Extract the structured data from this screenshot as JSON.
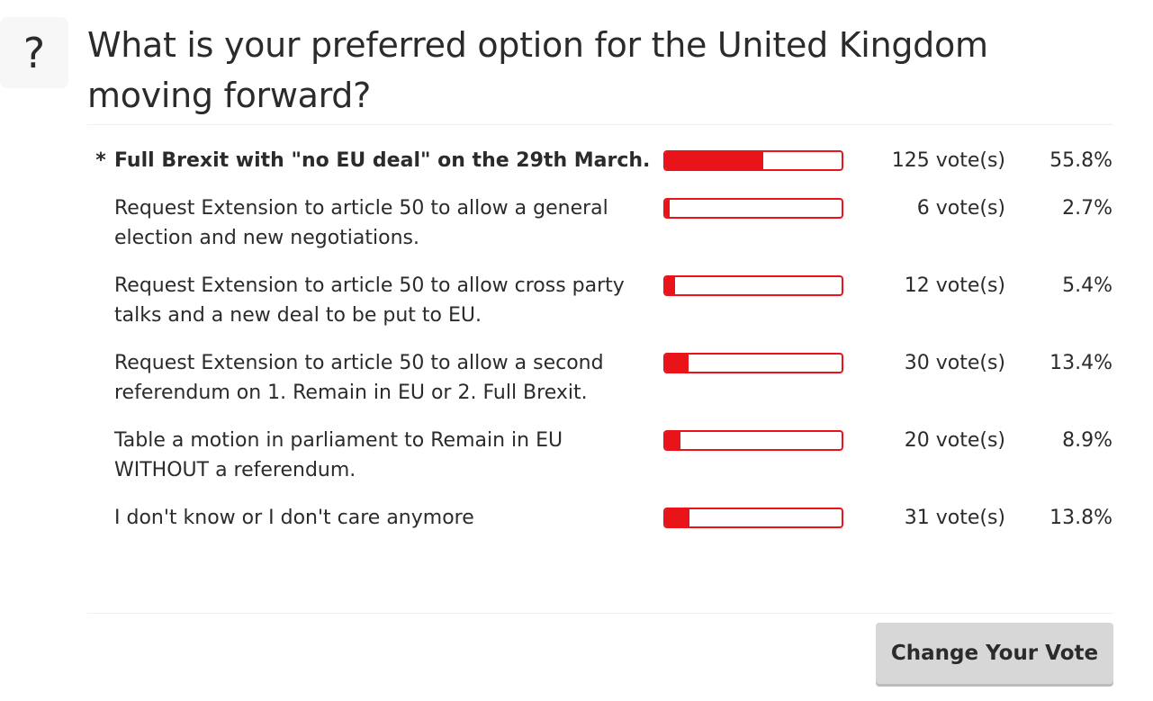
{
  "poll": {
    "icon": "question-mark-icon",
    "icon_glyph": "?",
    "question": "What is your preferred option for the United Kingdom moving forward?",
    "accent_color": "#e9141a",
    "options": [
      {
        "label": "Full Brexit with \"no EU deal\" on the 29th March.",
        "votes": "125 vote(s)",
        "percent": "55.8%",
        "fraction": 0.558,
        "selected": true,
        "marker": "*"
      },
      {
        "label": "Request Extension to article 50 to allow a general election and new negotiations.",
        "votes": "6 vote(s)",
        "percent": "2.7%",
        "fraction": 0.027,
        "selected": false,
        "marker": ""
      },
      {
        "label": "Request Extension to article 50 to allow cross party talks and a new deal to be put to EU.",
        "votes": "12 vote(s)",
        "percent": "5.4%",
        "fraction": 0.054,
        "selected": false,
        "marker": ""
      },
      {
        "label": "Request Extension to article 50 to allow a second referendum on 1. Remain in EU or 2. Full Brexit.",
        "votes": "30 vote(s)",
        "percent": "13.4%",
        "fraction": 0.134,
        "selected": false,
        "marker": ""
      },
      {
        "label": "Table a motion in parliament to Remain in EU WITHOUT a referendum.",
        "votes": "20 vote(s)",
        "percent": "8.9%",
        "fraction": 0.089,
        "selected": false,
        "marker": ""
      },
      {
        "label": "I don't know or I don't care anymore",
        "votes": "31 vote(s)",
        "percent": "13.8%",
        "fraction": 0.138,
        "selected": false,
        "marker": ""
      }
    ],
    "change_vote_label": "Change Your Vote"
  }
}
